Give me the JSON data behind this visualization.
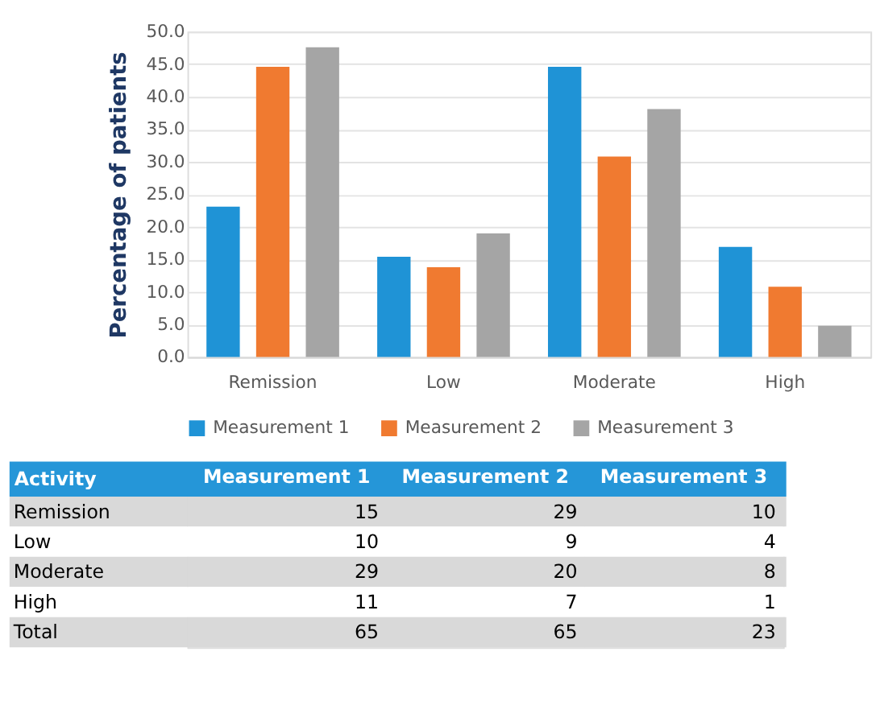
{
  "chart_data": [
    {
      "type": "bar",
      "ylabel": "Percentage of patients",
      "categories": [
        "Remission",
        "Low",
        "Moderate",
        "High"
      ],
      "series": [
        {
          "name": "Measurement 1",
          "color": "#1f93d6",
          "values": [
            23.1,
            15.4,
            44.6,
            16.9
          ]
        },
        {
          "name": "Measurement 2",
          "color": "#f07a30",
          "values": [
            44.6,
            13.8,
            30.8,
            10.8
          ]
        },
        {
          "name": "Measurement 3",
          "color": "#a5a5a5",
          "values": [
            47.6,
            19.0,
            38.1,
            4.8
          ]
        }
      ],
      "ylim": [
        0,
        50
      ],
      "yticks": [
        {
          "value": 0,
          "label": "0.0"
        },
        {
          "value": 5,
          "label": "5.0"
        },
        {
          "value": 10,
          "label": "10.0"
        },
        {
          "value": 15,
          "label": "15.0"
        },
        {
          "value": 20,
          "label": "20.0"
        },
        {
          "value": 25,
          "label": "25.0"
        },
        {
          "value": 30,
          "label": "30.0"
        },
        {
          "value": 35,
          "label": "35.0"
        },
        {
          "value": 40,
          "label": "40.0"
        },
        {
          "value": 45,
          "label": "45.0"
        },
        {
          "value": 50,
          "label": "50.0"
        }
      ],
      "grid": "y",
      "legend": "bottom"
    },
    {
      "type": "heatmap",
      "ylabel": "Activity",
      "categories": [
        "Measurement 1",
        "Measurement 2",
        "Measurement 3"
      ],
      "y_categories": [
        "Remission",
        "Low",
        "Moderate",
        "High",
        "Total"
      ],
      "data_labels": true,
      "cells": [
        [
          15,
          29,
          10
        ],
        [
          10,
          9,
          4
        ],
        [
          29,
          20,
          8
        ],
        [
          11,
          7,
          1
        ],
        [
          65,
          65,
          23
        ]
      ]
    }
  ]
}
